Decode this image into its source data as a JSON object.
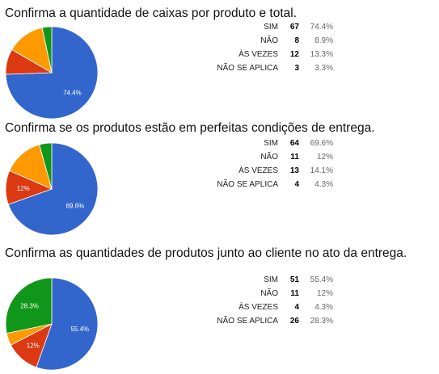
{
  "chart_data": [
    {
      "type": "pie",
      "title": "Confirma a quantidade de caixas por produto e total.",
      "categories": [
        "SIM",
        "NÃO",
        "ÀS VEZES",
        "NÃO SE APLICA"
      ],
      "values": [
        67,
        8,
        12,
        3
      ],
      "percents": [
        "74.4%",
        "8.9%",
        "13.3%",
        "3.3%"
      ],
      "colors": [
        "#3366cc",
        "#dc3912",
        "#ff9900",
        "#109618"
      ],
      "slice_labels": [
        "74.4%",
        "",
        "",
        ""
      ]
    },
    {
      "type": "pie",
      "title": "Confirma se os produtos estão em perfeitas condições de entrega.",
      "categories": [
        "SIM",
        "NÃO",
        "ÀS VEZES",
        "NÃO SE APLICA"
      ],
      "values": [
        64,
        11,
        13,
        4
      ],
      "percents": [
        "69.6%",
        "12%",
        "14.1%",
        "4.3%"
      ],
      "colors": [
        "#3366cc",
        "#dc3912",
        "#ff9900",
        "#109618"
      ],
      "slice_labels": [
        "69.6%",
        "12%",
        "",
        ""
      ]
    },
    {
      "type": "pie",
      "title": "Confirma as quantidades de produtos junto ao cliente no ato da entrega.",
      "categories": [
        "SIM",
        "NÃO",
        "ÀS VEZES",
        "NÃO SE APLICA"
      ],
      "values": [
        51,
        11,
        4,
        26
      ],
      "percents": [
        "55.4%",
        "12%",
        "4.3%",
        "28.3%"
      ],
      "colors": [
        "#3366cc",
        "#dc3912",
        "#ff9900",
        "#109618"
      ],
      "slice_labels": [
        "55.4%",
        "12%",
        "",
        "28.3%"
      ]
    }
  ]
}
